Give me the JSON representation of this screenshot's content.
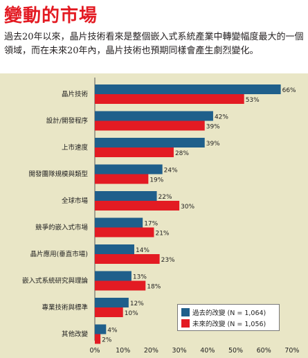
{
  "header": {
    "title": "變動的市場",
    "intro": "過去20年以來，晶片技術看來是整個嵌入式系統產業中轉變幅度最大的一個領域，而在未來20年內，晶片技術也預期同樣會產生劇烈變化。"
  },
  "colors": {
    "past": "#1f5f8b",
    "future": "#e31b23",
    "panel": "#e9e6c6"
  },
  "chart_data": {
    "type": "bar",
    "orientation": "horizontal",
    "categories": [
      "晶片技術",
      "設計/開發程序",
      "上市速度",
      "開發團隊規模與類型",
      "全球市場",
      "競爭的嵌入式市場",
      "晶片應用(垂直市場)",
      "嵌入式系統研究與理論",
      "專業技術與標準",
      "其他改變"
    ],
    "series": [
      {
        "name": "過去的改變 (N = 1,064)",
        "values": [
          66,
          42,
          39,
          24,
          22,
          17,
          14,
          13,
          12,
          4
        ],
        "labels": [
          "66%",
          "42%",
          "39%",
          "24%",
          "22%",
          "17%",
          "14%",
          "13%",
          "12%",
          "4%"
        ]
      },
      {
        "name": "未來的改變 (N = 1,056)",
        "values": [
          53,
          39,
          28,
          19,
          30,
          21,
          23,
          18,
          10,
          2
        ],
        "labels": [
          "53%",
          "39%",
          "28%",
          "19%",
          "30%",
          "21%",
          "23%",
          "18%",
          "10%",
          "2%"
        ]
      }
    ],
    "xlim": [
      0,
      70
    ],
    "xticks": [
      "0%",
      "10%",
      "20%",
      "30%",
      "40%",
      "50%",
      "60%",
      "70%"
    ],
    "legend_position": "bottom-right"
  }
}
